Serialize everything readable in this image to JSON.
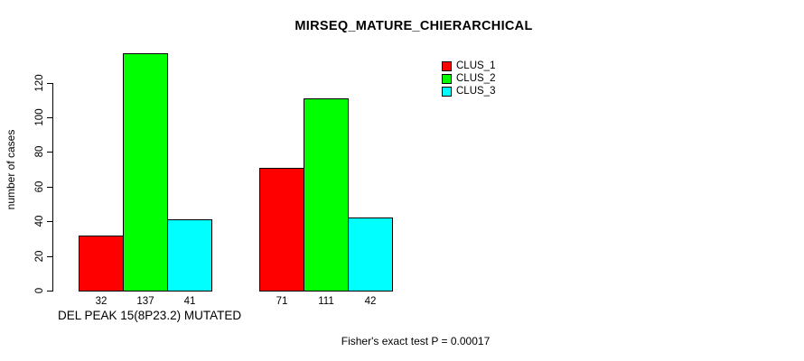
{
  "chart_data": {
    "type": "bar",
    "title": "MIRSEQ_MATURE_CHIERARCHICAL",
    "ylabel": "number of cases",
    "xlabel": "DEL PEAK 15(8P23.2) MUTATED",
    "footer": "Fisher's exact test P = 0.00017",
    "yticks": [
      0,
      20,
      40,
      60,
      80,
      100,
      120
    ],
    "ylim": [
      0,
      140
    ],
    "grid": false,
    "legend_position": "top-right",
    "groups": 2,
    "series": [
      {
        "name": "CLUS_1",
        "color": "#ff0000",
        "values": [
          32,
          71
        ]
      },
      {
        "name": "CLUS_2",
        "color": "#00ff00",
        "values": [
          137,
          111
        ]
      },
      {
        "name": "CLUS_3",
        "color": "#00ffff",
        "values": [
          41,
          42
        ]
      }
    ],
    "bar_value_labels": [
      [
        "32",
        "137",
        "41"
      ],
      [
        "71",
        "111",
        "42"
      ]
    ],
    "colors": {
      "background": "#ffffff",
      "axis": "#000000",
      "text": "#000000"
    }
  }
}
